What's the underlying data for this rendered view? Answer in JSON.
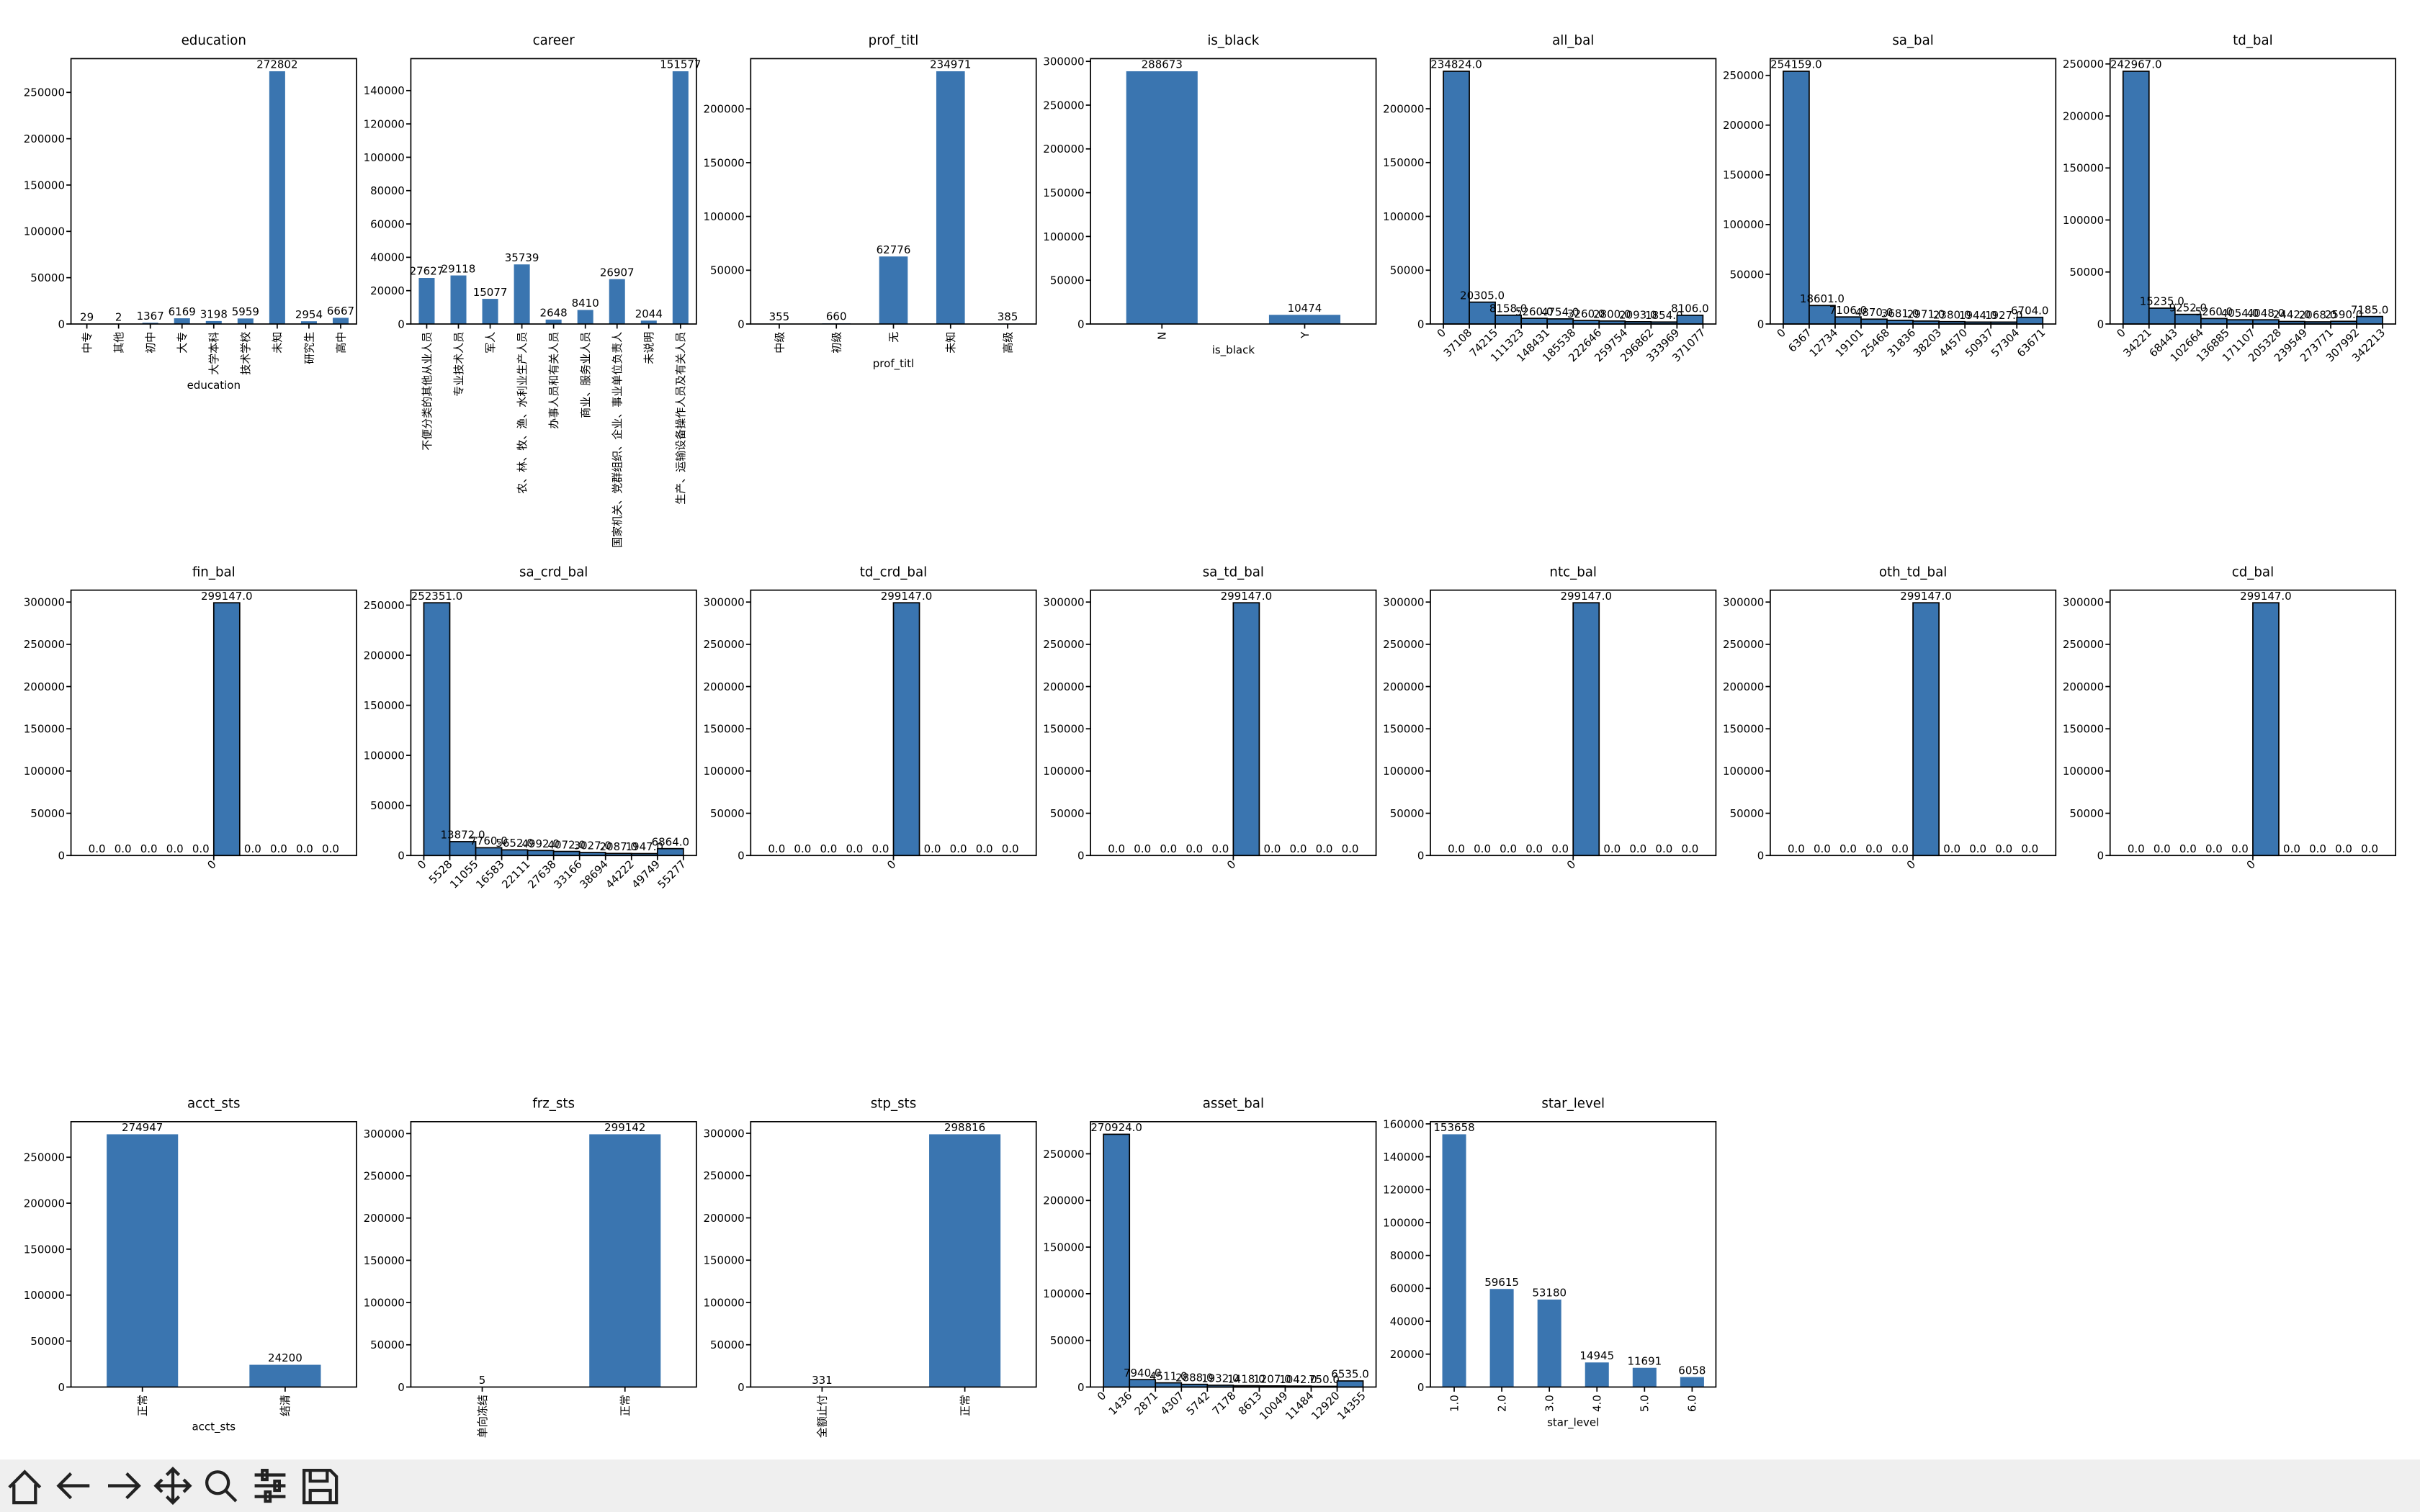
{
  "chart_data": [
    {
      "type": "bar",
      "title": "education",
      "xlabel": "education",
      "color": "#3a75b0",
      "categories": [
        "中专",
        "其他",
        "初中",
        "大专",
        "大学本科",
        "技术学校",
        "未知",
        "研究生",
        "高中"
      ],
      "values": [
        29,
        2,
        1367,
        6169,
        3198,
        5959,
        272802,
        2954,
        6667
      ],
      "ylim": [
        0,
        286442
      ],
      "yticks": [
        0,
        50000,
        100000,
        150000,
        200000,
        250000
      ]
    },
    {
      "type": "bar",
      "title": "career",
      "color": "#3a75b0",
      "categories": [
        "不便分类的其他从业人员",
        "专业技术人员",
        "军人",
        "农、林、牧、渔、水利业生产人员",
        "办事人员和有关人员",
        "商业、服务业人员",
        "国家机关、党群组织、企业、事业单位负责人",
        "未说明",
        "生产、运输设备操作人员及有关人员"
      ],
      "values": [
        27627,
        29118,
        15077,
        35739,
        2648,
        8410,
        26907,
        2044,
        151577
      ],
      "ylim": [
        0,
        159156
      ],
      "yticks": [
        0,
        20000,
        40000,
        60000,
        80000,
        100000,
        120000,
        140000
      ]
    },
    {
      "type": "bar",
      "title": "prof_titl",
      "xlabel": "prof_titl",
      "color": "#3a75b0",
      "categories": [
        "中级",
        "初级",
        "无",
        "未知",
        "高级"
      ],
      "values": [
        355,
        660,
        62776,
        234971,
        385
      ],
      "ylim": [
        0,
        246720
      ],
      "yticks": [
        0,
        50000,
        100000,
        150000,
        200000
      ]
    },
    {
      "type": "bar",
      "title": "is_black",
      "xlabel": "is_black",
      "color": "#3a75b0",
      "categories": [
        "N",
        "Y"
      ],
      "values": [
        288673,
        10474
      ],
      "ylim": [
        0,
        303107
      ],
      "yticks": [
        0,
        50000,
        100000,
        150000,
        200000,
        250000,
        300000
      ]
    },
    {
      "type": "histogram",
      "title": "all_bal",
      "color": "#3a75b0",
      "edgecolor": "#000000",
      "bins": [
        0,
        37108,
        74215,
        111323,
        148431,
        185538,
        222646,
        259754,
        296862,
        333969,
        371077
      ],
      "values": [
        234824,
        20305,
        8158,
        5260,
        4754,
        3260,
        2800,
        2093,
        1854,
        8106
      ],
      "value_labels": [
        "234824.0",
        "20305.0",
        "8158.0",
        "5260.0",
        "4754.0",
        "3260.0",
        "2800.0",
        "2093.0",
        "1854.0",
        "8106.0"
      ],
      "xlim": [
        -18554,
        389631
      ],
      "xticks": [
        0,
        37108,
        74215,
        111323,
        148431,
        185538,
        222646,
        259754,
        296862,
        333969,
        371077
      ],
      "ylim": [
        0,
        246565
      ],
      "yticks": [
        0,
        50000,
        100000,
        150000,
        200000
      ]
    },
    {
      "type": "histogram",
      "title": "sa_bal",
      "color": "#3a75b0",
      "edgecolor": "#000000",
      "bins": [
        0,
        6367,
        12734,
        19101,
        25468,
        31836,
        38203,
        44570,
        50937,
        57304,
        63671
      ],
      "values": [
        254159,
        18601,
        7106,
        4870,
        3681,
        2971,
        2380,
        1944,
        1927,
        6704
      ],
      "value_labels": [
        "254159.0",
        "18601.0",
        "7106.0",
        "4870.0",
        "3681.0",
        "2971.0",
        "2380.0",
        "1944.0",
        "1927.0",
        "6704.0"
      ],
      "xlim": [
        -3184,
        66855
      ],
      "xticks": [
        0,
        6367,
        12734,
        19101,
        25468,
        31836,
        38203,
        44570,
        50937,
        57304,
        63671
      ],
      "ylim": [
        0,
        266867
      ],
      "yticks": [
        0,
        50000,
        100000,
        150000,
        200000,
        250000
      ]
    },
    {
      "type": "histogram",
      "title": "td_bal",
      "color": "#3a75b0",
      "edgecolor": "#000000",
      "bins": [
        0,
        34221,
        68443,
        102664,
        136885,
        171107,
        205328,
        239549,
        273771,
        307992,
        342213
      ],
      "values": [
        242967,
        15235,
        9252,
        5260,
        4054,
        4048,
        2442,
        2068,
        2590,
        7185
      ],
      "value_labels": [
        "242967.0",
        "15235.0",
        "9252.0",
        "5260.0",
        "4054.0",
        "4048.0",
        "2442.0",
        "2068.0",
        "2590.0",
        "7185.0"
      ],
      "xlim": [
        -17111,
        359324
      ],
      "xticks": [
        0,
        34221,
        68443,
        102664,
        136885,
        171107,
        205328,
        239549,
        273771,
        307992,
        342213
      ],
      "ylim": [
        0,
        255115
      ],
      "yticks": [
        0,
        50000,
        100000,
        150000,
        200000,
        250000
      ]
    },
    {
      "type": "histogram",
      "title": "fin_bal",
      "color": "#3a75b0",
      "edgecolor": "#000000",
      "bins": [
        -0.5,
        -0.4,
        -0.3,
        -0.2,
        -0.1,
        0,
        0.1,
        0.2,
        0.3,
        0.4,
        0.5
      ],
      "values": [
        0,
        0,
        0,
        0,
        0,
        299147,
        0,
        0,
        0,
        0
      ],
      "value_labels": [
        "0.0",
        "0.0",
        "0.0",
        "0.0",
        "0.0",
        "299147.0",
        "0.0",
        "0.0",
        "0.0",
        "0.0"
      ],
      "xlim": [
        -0.55,
        0.55
      ],
      "xticks": [
        0
      ],
      "ylim": [
        0,
        314104
      ],
      "yticks": [
        0,
        50000,
        100000,
        150000,
        200000,
        250000,
        300000
      ]
    },
    {
      "type": "histogram",
      "title": "sa_crd_bal",
      "color": "#3a75b0",
      "edgecolor": "#000000",
      "bins": [
        0,
        5528,
        11055,
        16583,
        22111,
        27638,
        33166,
        38694,
        44222,
        49749,
        55277
      ],
      "values": [
        252351,
        13872,
        7760,
        5652,
        4992,
        4072,
        3027,
        2087,
        1947,
        6864
      ],
      "value_labels": [
        "252351.0",
        "13872.0",
        "7760.0",
        "5652.0",
        "4992.0",
        "4072.0",
        "3027.0",
        "2087.0",
        "1947.0",
        "6864.0"
      ],
      "xlim": [
        -2764,
        58041
      ],
      "xticks": [
        0,
        5528,
        11055,
        16583,
        22111,
        27638,
        33166,
        38694,
        44222,
        49749,
        55277
      ],
      "ylim": [
        0,
        264969
      ],
      "yticks": [
        0,
        50000,
        100000,
        150000,
        200000,
        250000
      ]
    },
    {
      "type": "histogram",
      "title": "td_crd_bal",
      "color": "#3a75b0",
      "edgecolor": "#000000",
      "bins": [
        -0.5,
        -0.4,
        -0.3,
        -0.2,
        -0.1,
        0,
        0.1,
        0.2,
        0.3,
        0.4,
        0.5
      ],
      "values": [
        0,
        0,
        0,
        0,
        0,
        299147,
        0,
        0,
        0,
        0
      ],
      "value_labels": [
        "0.0",
        "0.0",
        "0.0",
        "0.0",
        "0.0",
        "299147.0",
        "0.0",
        "0.0",
        "0.0",
        "0.0"
      ],
      "xlim": [
        -0.55,
        0.55
      ],
      "xticks": [
        0
      ],
      "ylim": [
        0,
        314104
      ],
      "yticks": [
        0,
        50000,
        100000,
        150000,
        200000,
        250000,
        300000
      ]
    },
    {
      "type": "histogram",
      "title": "sa_td_bal",
      "color": "#3a75b0",
      "edgecolor": "#000000",
      "bins": [
        -0.5,
        -0.4,
        -0.3,
        -0.2,
        -0.1,
        0,
        0.1,
        0.2,
        0.3,
        0.4,
        0.5
      ],
      "values": [
        0,
        0,
        0,
        0,
        0,
        299147,
        0,
        0,
        0,
        0
      ],
      "value_labels": [
        "0.0",
        "0.0",
        "0.0",
        "0.0",
        "0.0",
        "299147.0",
        "0.0",
        "0.0",
        "0.0",
        "0.0"
      ],
      "xlim": [
        -0.55,
        0.55
      ],
      "xticks": [
        0
      ],
      "ylim": [
        0,
        314104
      ],
      "yticks": [
        0,
        50000,
        100000,
        150000,
        200000,
        250000,
        300000
      ]
    },
    {
      "type": "histogram",
      "title": "ntc_bal",
      "color": "#3a75b0",
      "edgecolor": "#000000",
      "bins": [
        -0.5,
        -0.4,
        -0.3,
        -0.2,
        -0.1,
        0,
        0.1,
        0.2,
        0.3,
        0.4,
        0.5
      ],
      "values": [
        0,
        0,
        0,
        0,
        0,
        299147,
        0,
        0,
        0,
        0
      ],
      "value_labels": [
        "0.0",
        "0.0",
        "0.0",
        "0.0",
        "0.0",
        "299147.0",
        "0.0",
        "0.0",
        "0.0",
        "0.0"
      ],
      "xlim": [
        -0.55,
        0.55
      ],
      "xticks": [
        0
      ],
      "ylim": [
        0,
        314104
      ],
      "yticks": [
        0,
        50000,
        100000,
        150000,
        200000,
        250000,
        300000
      ]
    },
    {
      "type": "histogram",
      "title": "oth_td_bal",
      "color": "#3a75b0",
      "edgecolor": "#000000",
      "bins": [
        -0.5,
        -0.4,
        -0.3,
        -0.2,
        -0.1,
        0,
        0.1,
        0.2,
        0.3,
        0.4,
        0.5
      ],
      "values": [
        0,
        0,
        0,
        0,
        0,
        299147,
        0,
        0,
        0,
        0
      ],
      "value_labels": [
        "0.0",
        "0.0",
        "0.0",
        "0.0",
        "0.0",
        "299147.0",
        "0.0",
        "0.0",
        "0.0",
        "0.0"
      ],
      "xlim": [
        -0.55,
        0.55
      ],
      "xticks": [
        0
      ],
      "ylim": [
        0,
        314104
      ],
      "yticks": [
        0,
        50000,
        100000,
        150000,
        200000,
        250000,
        300000
      ]
    },
    {
      "type": "histogram",
      "title": "cd_bal",
      "color": "#3a75b0",
      "edgecolor": "#000000",
      "bins": [
        -0.5,
        -0.4,
        -0.3,
        -0.2,
        -0.1,
        0,
        0.1,
        0.2,
        0.3,
        0.4,
        0.5
      ],
      "values": [
        0,
        0,
        0,
        0,
        0,
        299147,
        0,
        0,
        0,
        0
      ],
      "value_labels": [
        "0.0",
        "0.0",
        "0.0",
        "0.0",
        "0.0",
        "299147.0",
        "0.0",
        "0.0",
        "0.0",
        "0.0"
      ],
      "xlim": [
        -0.55,
        0.55
      ],
      "xticks": [
        0
      ],
      "ylim": [
        0,
        314104
      ],
      "yticks": [
        0,
        50000,
        100000,
        150000,
        200000,
        250000,
        300000
      ]
    },
    {
      "type": "bar",
      "title": "acct_sts",
      "xlabel": "acct_sts",
      "color": "#3a75b0",
      "categories": [
        "正常",
        "结清"
      ],
      "values": [
        274947,
        24200
      ],
      "ylim": [
        0,
        288694
      ],
      "yticks": [
        0,
        50000,
        100000,
        150000,
        200000,
        250000
      ]
    },
    {
      "type": "bar",
      "title": "frz_sts",
      "color": "#3a75b0",
      "categories": [
        "单向冻结",
        "正常"
      ],
      "values": [
        5,
        299142
      ],
      "ylim": [
        0,
        314099
      ],
      "yticks": [
        0,
        50000,
        100000,
        150000,
        200000,
        250000,
        300000
      ]
    },
    {
      "type": "bar",
      "title": "stp_sts",
      "color": "#3a75b0",
      "categories": [
        "全额止付",
        "正常"
      ],
      "values": [
        331,
        298816
      ],
      "ylim": [
        0,
        313757
      ],
      "yticks": [
        0,
        50000,
        100000,
        150000,
        200000,
        250000,
        300000
      ]
    },
    {
      "type": "histogram",
      "title": "asset_bal",
      "color": "#3a75b0",
      "edgecolor": "#000000",
      "bins": [
        0,
        1436,
        2871,
        4307,
        5742,
        7178,
        8613,
        10049,
        11484,
        12920,
        14355
      ],
      "values": [
        270924,
        7940,
        4511,
        2888,
        1932,
        1418,
        1207,
        1042,
        750,
        6535
      ],
      "value_labels": [
        "270924.0",
        "7940.0",
        "4511.0",
        "2888.0",
        "1932.0",
        "1418.0",
        "1207.0",
        "1042.0",
        "750.0",
        "6535.0"
      ],
      "xlim": [
        -718,
        15073
      ],
      "xticks": [
        0,
        1436,
        2871,
        4307,
        5742,
        7178,
        8613,
        10049,
        11484,
        12920,
        14355
      ],
      "ylim": [
        0,
        284470
      ],
      "yticks": [
        0,
        50000,
        100000,
        150000,
        200000,
        250000
      ]
    },
    {
      "type": "bar",
      "title": "star_level",
      "xlabel": "star_level",
      "color": "#3a75b0",
      "categories": [
        "1.0",
        "2.0",
        "3.0",
        "4.0",
        "5.0",
        "6.0"
      ],
      "values": [
        153658,
        59615,
        53180,
        14945,
        11691,
        6058
      ],
      "ylim": [
        0,
        161341
      ],
      "yticks": [
        0,
        20000,
        40000,
        60000,
        80000,
        100000,
        120000,
        140000,
        160000
      ]
    }
  ]
}
